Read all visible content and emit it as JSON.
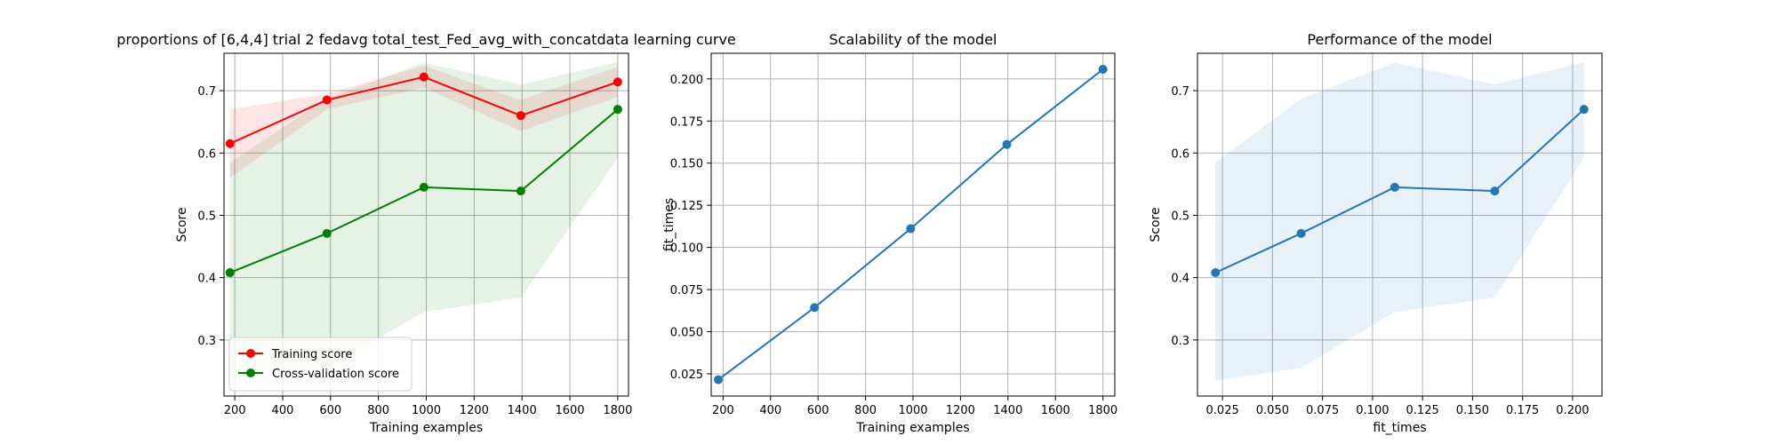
{
  "chart_data": [
    {
      "type": "line",
      "title": "proportions of [6,4,4] trial 2 fedavg total_test_Fed_avg_with_concatdata learning curve",
      "xlabel": "Training examples",
      "ylabel": "Score",
      "xlim": [
        155,
        1845
      ],
      "ylim": [
        0.21,
        0.76
      ],
      "xticks": [
        200,
        400,
        600,
        800,
        1000,
        1200,
        1400,
        1600,
        1800
      ],
      "yticks": [
        0.3,
        0.4,
        0.5,
        0.6,
        0.7
      ],
      "grid": true,
      "legend_position": "lower-left",
      "x": [
        180,
        585,
        990,
        1395,
        1800
      ],
      "series": [
        {
          "name": "Training score",
          "color": "#ff0000",
          "values": [
            0.615,
            0.685,
            0.722,
            0.66,
            0.714
          ],
          "band_low": [
            0.56,
            0.67,
            0.705,
            0.635,
            0.69
          ],
          "band_high": [
            0.67,
            0.695,
            0.74,
            0.685,
            0.738
          ]
        },
        {
          "name": "Cross-validation score",
          "color": "#008000",
          "values": [
            0.408,
            0.471,
            0.545,
            0.539,
            0.67
          ],
          "band_low": [
            0.235,
            0.255,
            0.345,
            0.368,
            0.592
          ],
          "band_high": [
            0.585,
            0.687,
            0.745,
            0.71,
            0.746
          ]
        }
      ]
    },
    {
      "type": "line",
      "title": "Scalability of the model",
      "xlabel": "Training examples",
      "ylabel": "fit_times",
      "xlim": [
        150,
        1850
      ],
      "ylim": [
        0.0118,
        0.2152
      ],
      "xticks": [
        200,
        400,
        600,
        800,
        1000,
        1200,
        1400,
        1600,
        1800
      ],
      "yticks": [
        0.025,
        0.05,
        0.075,
        0.1,
        0.125,
        0.15,
        0.175,
        0.2
      ],
      "ytick_labels": [
        "0.025",
        "0.050",
        "0.075",
        "0.100",
        "0.125",
        "0.150",
        "0.175",
        "0.200"
      ],
      "grid": true,
      "x": [
        180,
        585,
        990,
        1395,
        1800
      ],
      "series": [
        {
          "color": "#1f77b4",
          "values": [
            0.0215,
            0.0643,
            0.1111,
            0.1611,
            0.2057
          ]
        }
      ]
    },
    {
      "type": "line",
      "title": "Performance of the model",
      "xlabel": "fit_times",
      "ylabel": "Score",
      "xlim": [
        0.0125,
        0.2147
      ],
      "ylim": [
        0.21,
        0.76
      ],
      "xticks": [
        0.025,
        0.05,
        0.075,
        0.1,
        0.125,
        0.15,
        0.175,
        0.2
      ],
      "xtick_labels": [
        "0.025",
        "0.050",
        "0.075",
        "0.100",
        "0.125",
        "0.150",
        "0.175",
        "0.200"
      ],
      "yticks": [
        0.3,
        0.4,
        0.5,
        0.6,
        0.7
      ],
      "grid": true,
      "x": [
        0.0215,
        0.0643,
        0.1111,
        0.1611,
        0.2057
      ],
      "series": [
        {
          "color": "#1f77b4",
          "values": [
            0.408,
            0.471,
            0.545,
            0.539,
            0.67
          ],
          "band_low": [
            0.235,
            0.255,
            0.345,
            0.368,
            0.592
          ],
          "band_high": [
            0.585,
            0.687,
            0.745,
            0.71,
            0.746
          ]
        }
      ]
    }
  ]
}
